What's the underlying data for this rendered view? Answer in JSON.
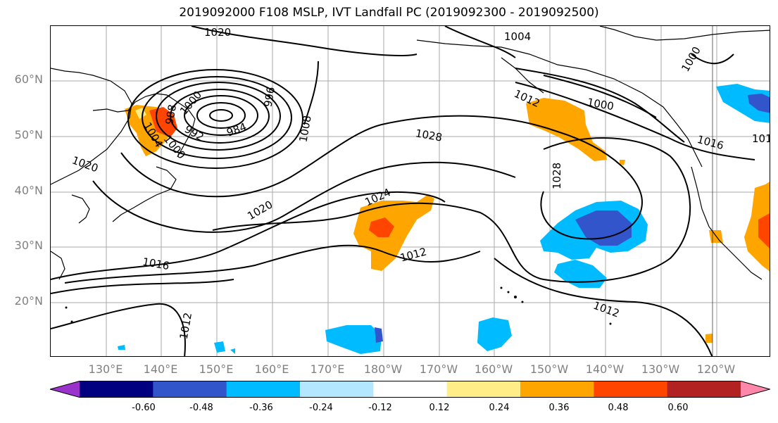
{
  "title": "2019092000 F108 MSLP, IVT Landfall PC (2019092300 - 2019092500)",
  "lat_labels": [
    "60°N",
    "50°N",
    "40°N",
    "30°N",
    "20°N"
  ],
  "lon_labels": [
    "130°E",
    "140°E",
    "150°E",
    "160°E",
    "170°E",
    "180°W",
    "170°W",
    "160°W",
    "150°W",
    "140°W",
    "130°W",
    "120°W"
  ],
  "contour_labels": [
    "1020",
    "1004",
    "1000",
    "1000",
    "1012",
    "1000",
    "988",
    "984",
    "992",
    "1000",
    "1004",
    "996",
    "1008",
    "1028",
    "1016",
    "1020",
    "1024",
    "1028",
    "1020",
    "1012",
    "1016",
    "1012",
    "1012",
    "101"
  ],
  "colorbar": {
    "ticks": [
      "-0.60",
      "-0.48",
      "-0.36",
      "-0.24",
      "-0.12",
      "0.12",
      "0.24",
      "0.36",
      "0.48",
      "0.60"
    ],
    "colors": [
      "#9933cc",
      "#000080",
      "#3355cc",
      "#00bbff",
      "#b3e6ff",
      "#ffffff",
      "#ffee88",
      "#ffa500",
      "#ff4500",
      "#b22222",
      "#ff88aa"
    ]
  }
}
